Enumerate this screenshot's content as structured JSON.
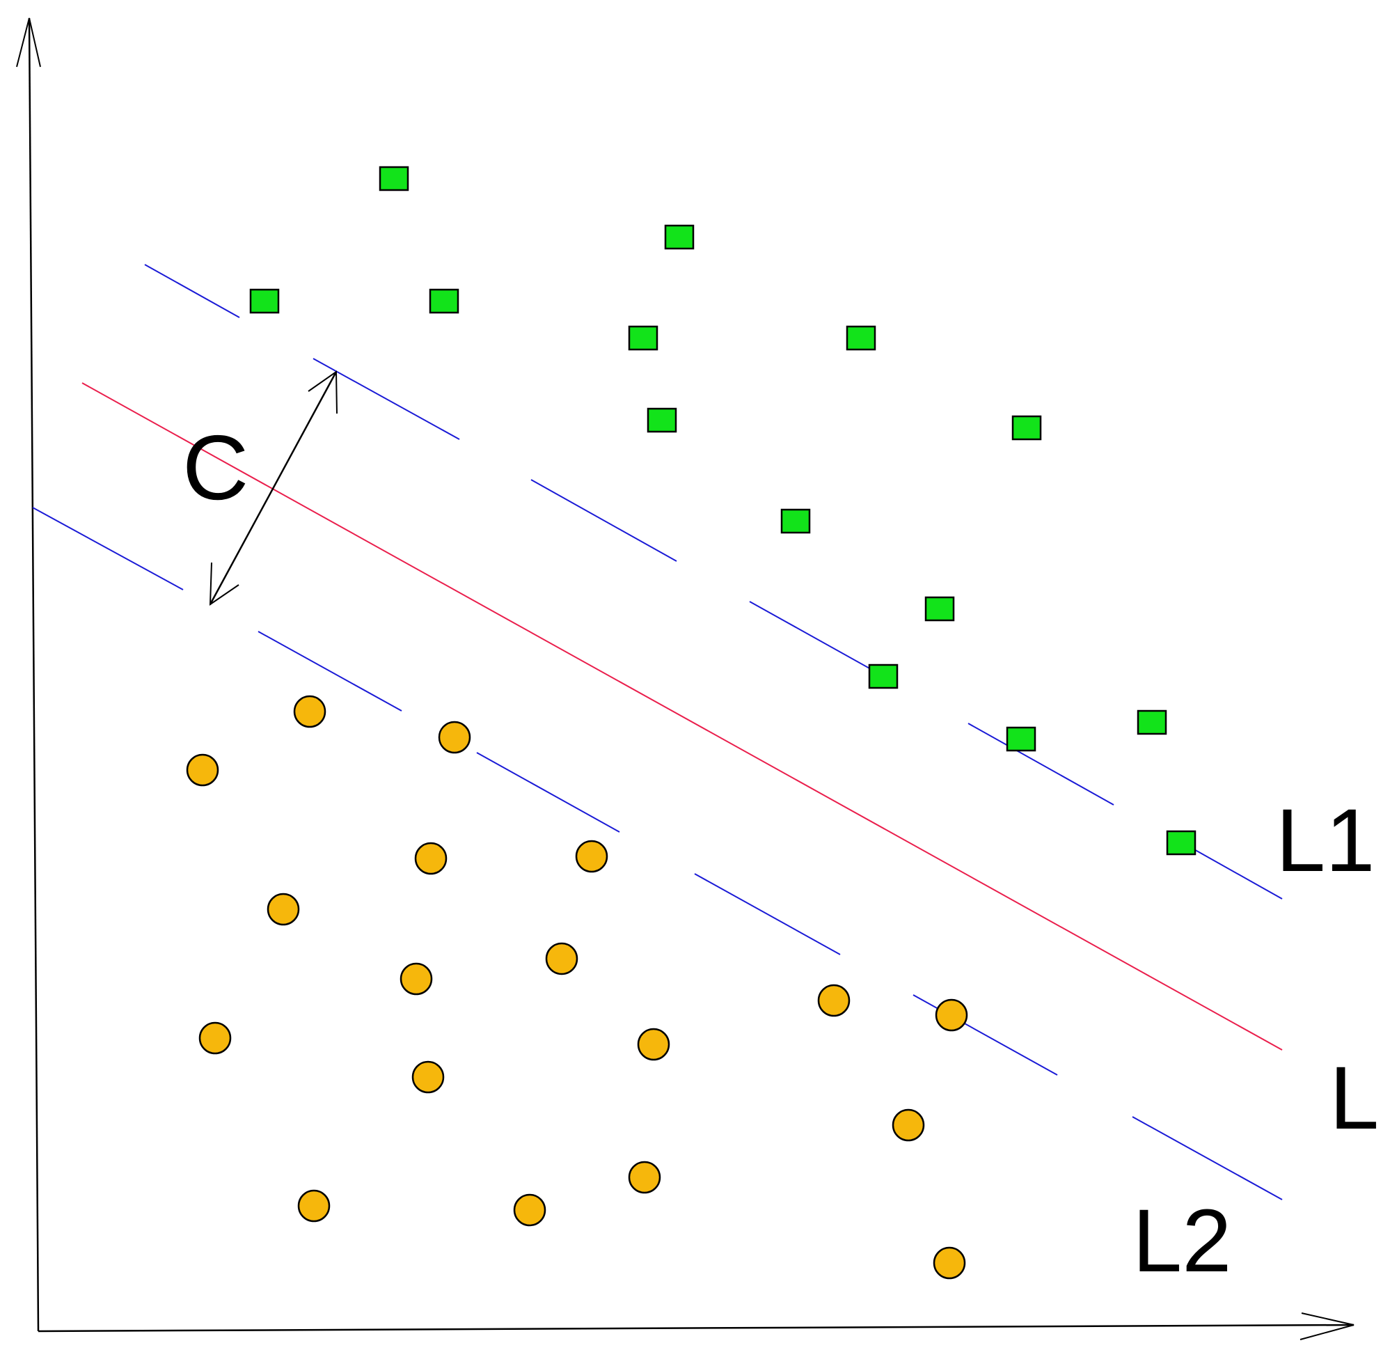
{
  "labels": {
    "margin_width": "C",
    "upper_margin": "L1",
    "separator": "L",
    "lower_margin": "L2"
  },
  "colors": {
    "axis": "#000000",
    "margin_lines": "#1a1ad6",
    "separator_line": "#ea1e4c",
    "class_a_fill": "#12e31a",
    "class_b_fill": "#f6b70c",
    "outline": "#000000",
    "background": "#ffffff"
  },
  "shapes": {
    "class_a": "square",
    "class_b": "circle"
  },
  "counts": {
    "class_a_points": 14,
    "class_b_points": 18
  }
}
